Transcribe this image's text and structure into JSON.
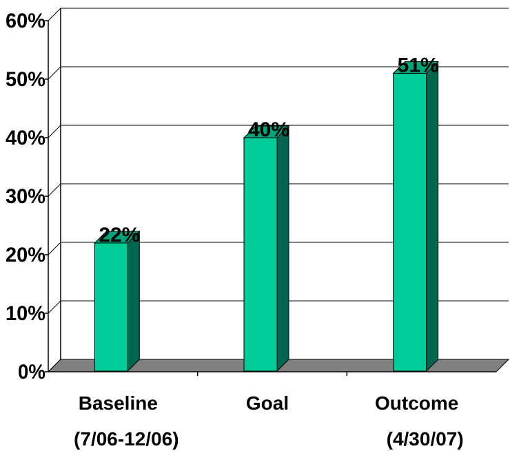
{
  "chart_data": {
    "type": "bar",
    "title": "",
    "xlabel": "",
    "ylabel": "",
    "categories": [
      {
        "line1": "Baseline",
        "line2": "(7/06-12/06)"
      },
      {
        "line1": "Goal",
        "line2": ""
      },
      {
        "line1": "Outcome",
        "line2": "(4/30/07)"
      }
    ],
    "values": [
      22,
      40,
      51
    ],
    "data_labels": [
      "22%",
      "40%",
      "51%"
    ],
    "y_ticks": [
      {
        "value": 0,
        "label": "0%"
      },
      {
        "value": 10,
        "label": "10%"
      },
      {
        "value": 20,
        "label": "20%"
      },
      {
        "value": 30,
        "label": "30%"
      },
      {
        "value": 40,
        "label": "40%"
      },
      {
        "value": 50,
        "label": "50%"
      },
      {
        "value": 60,
        "label": "60%"
      }
    ],
    "ylim": [
      0,
      60
    ],
    "grid": true,
    "legend": "none",
    "style": "3d-bar",
    "colors": {
      "bar_front": "#00CC99",
      "bar_side": "#006650",
      "bar_top": "#00A37A",
      "floor": "#808080",
      "gridline": "#000000"
    }
  }
}
